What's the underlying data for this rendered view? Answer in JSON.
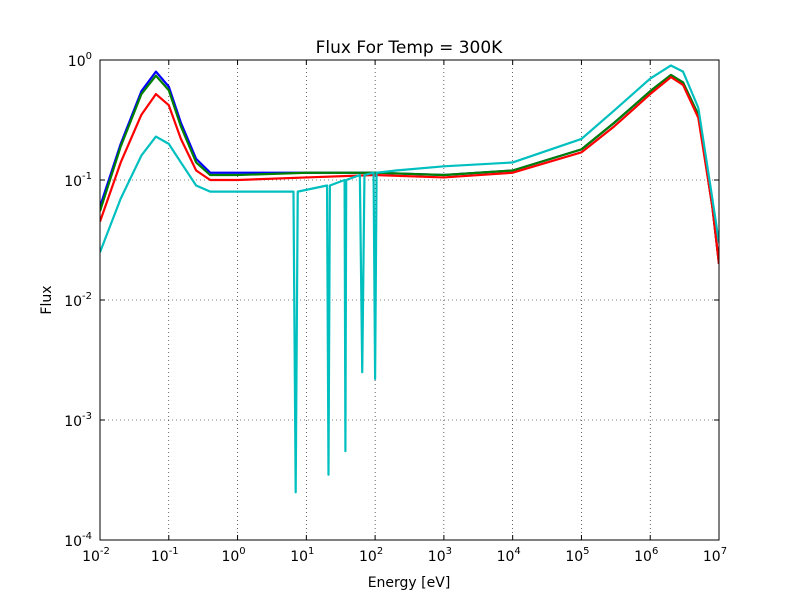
{
  "chart_data": {
    "type": "line",
    "title": "Flux For Temp = 300K",
    "xlabel": "Energy [eV]",
    "ylabel": "Flux",
    "xscale": "log",
    "yscale": "log",
    "xlim": [
      0.01,
      10000000
    ],
    "ylim": [
      0.0001,
      1
    ],
    "grid": true,
    "x_ticks": [
      {
        "value": 0.01,
        "base": "10",
        "exp": "-2"
      },
      {
        "value": 0.1,
        "base": "10",
        "exp": "-1"
      },
      {
        "value": 1,
        "base": "10",
        "exp": "0"
      },
      {
        "value": 10,
        "base": "10",
        "exp": "1"
      },
      {
        "value": 100,
        "base": "10",
        "exp": "2"
      },
      {
        "value": 1000,
        "base": "10",
        "exp": "3"
      },
      {
        "value": 10000,
        "base": "10",
        "exp": "4"
      },
      {
        "value": 100000,
        "base": "10",
        "exp": "5"
      },
      {
        "value": 1000000,
        "base": "10",
        "exp": "6"
      },
      {
        "value": 10000000,
        "base": "10",
        "exp": "7"
      }
    ],
    "y_ticks": [
      {
        "value": 0.0001,
        "base": "10",
        "exp": "-4"
      },
      {
        "value": 0.001,
        "base": "10",
        "exp": "-3"
      },
      {
        "value": 0.01,
        "base": "10",
        "exp": "-2"
      },
      {
        "value": 0.1,
        "base": "10",
        "exp": "-1"
      },
      {
        "value": 1,
        "base": "10",
        "exp": "0"
      }
    ],
    "series": [
      {
        "color": "#0000ff",
        "x": [
          0.01,
          0.02,
          0.04,
          0.065,
          0.1,
          0.15,
          0.25,
          0.4,
          1,
          10,
          100,
          1000,
          10000,
          100000,
          300000,
          1000000,
          2000000,
          3000000,
          5000000,
          8000000,
          10000000
        ],
        "y": [
          0.06,
          0.2,
          0.55,
          0.8,
          0.6,
          0.3,
          0.15,
          0.115,
          0.115,
          0.115,
          0.115,
          0.11,
          0.12,
          0.18,
          0.3,
          0.55,
          0.75,
          0.65,
          0.35,
          0.06,
          0.02
        ]
      },
      {
        "color": "#008000",
        "x": [
          0.01,
          0.02,
          0.04,
          0.065,
          0.1,
          0.15,
          0.25,
          0.4,
          1,
          10,
          100,
          1000,
          10000,
          100000,
          300000,
          1000000,
          2000000,
          3000000,
          5000000,
          8000000,
          10000000
        ],
        "y": [
          0.055,
          0.19,
          0.52,
          0.74,
          0.56,
          0.28,
          0.14,
          0.11,
          0.11,
          0.115,
          0.115,
          0.11,
          0.12,
          0.18,
          0.3,
          0.55,
          0.75,
          0.65,
          0.35,
          0.06,
          0.02
        ]
      },
      {
        "color": "#ff0000",
        "x": [
          0.01,
          0.02,
          0.04,
          0.065,
          0.1,
          0.15,
          0.25,
          0.4,
          1,
          10,
          100,
          1000,
          10000,
          100000,
          300000,
          1000000,
          2000000,
          3000000,
          5000000,
          8000000,
          10000000
        ],
        "y": [
          0.045,
          0.14,
          0.35,
          0.52,
          0.42,
          0.22,
          0.12,
          0.1,
          0.1,
          0.105,
          0.11,
          0.105,
          0.115,
          0.17,
          0.28,
          0.52,
          0.72,
          0.62,
          0.33,
          0.06,
          0.02
        ]
      },
      {
        "color": "#00bfbf",
        "x": [
          0.01,
          0.02,
          0.04,
          0.065,
          0.1,
          0.15,
          0.25,
          0.4,
          1,
          6.5,
          7,
          7.5,
          20,
          21,
          22,
          36,
          37,
          38,
          60,
          65,
          70,
          95,
          100,
          105,
          200,
          1000,
          10000,
          100000,
          300000,
          1000000,
          2000000,
          3000000,
          5000000,
          8000000,
          10000000
        ],
        "y": [
          0.025,
          0.07,
          0.16,
          0.23,
          0.2,
          0.14,
          0.09,
          0.08,
          0.08,
          0.08,
          0.00025,
          0.08,
          0.09,
          0.00035,
          0.09,
          0.1,
          0.00055,
          0.1,
          0.11,
          0.0025,
          0.11,
          0.115,
          0.0022,
          0.115,
          0.12,
          0.13,
          0.14,
          0.22,
          0.38,
          0.7,
          0.9,
          0.8,
          0.4,
          0.07,
          0.03
        ]
      }
    ]
  }
}
